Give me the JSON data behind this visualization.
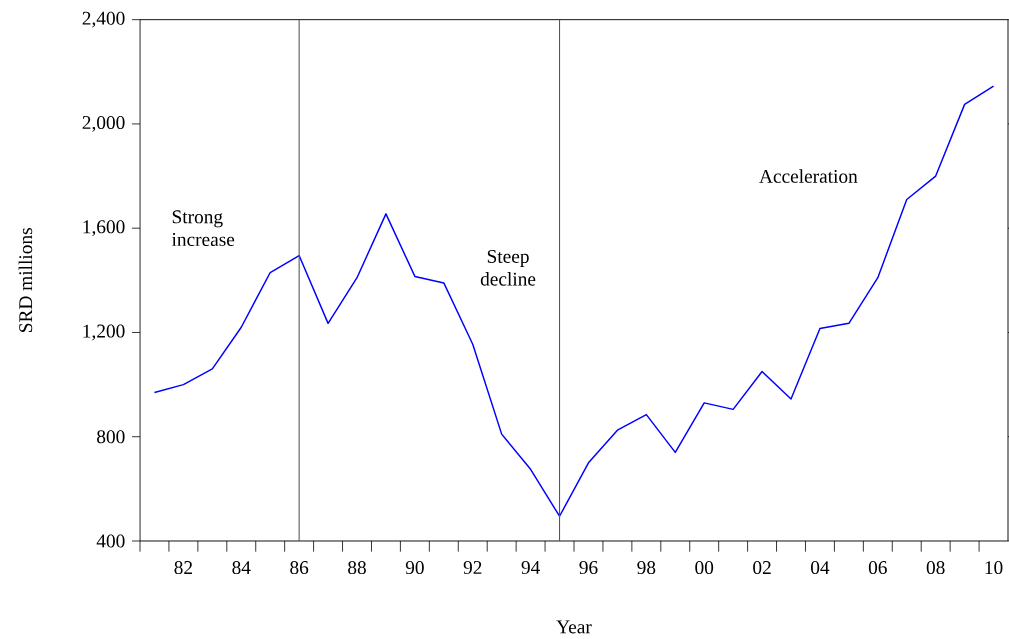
{
  "chart_data": {
    "type": "line",
    "xlabel": "Year",
    "ylabel": "SRD millions",
    "x": [
      1981,
      1982,
      1983,
      1984,
      1985,
      1986,
      1987,
      1988,
      1989,
      1990,
      1991,
      1992,
      1993,
      1994,
      1995,
      1996,
      1997,
      1998,
      1999,
      2000,
      2001,
      2002,
      2003,
      2004,
      2005,
      2006,
      2007,
      2008,
      2009,
      2010
    ],
    "series": [
      {
        "color": "#0000ff",
        "values": [
          970,
          1000,
          1060,
          1220,
          1430,
          1495,
          1235,
          1410,
          1655,
          1415,
          1390,
          1155,
          810,
          675,
          495,
          700,
          825,
          885,
          740,
          930,
          905,
          1050,
          945,
          1215,
          1235,
          1410,
          1710,
          1800,
          2075,
          2145
        ]
      }
    ],
    "xlim": [
      1980.5,
      2010.5
    ],
    "xticks": [
      {
        "value": 1980.5,
        "label": null
      },
      {
        "value": 1981.5,
        "label": null
      },
      {
        "value": 1982,
        "label": "82"
      },
      {
        "value": 1982.5,
        "label": null
      },
      {
        "value": 1983.5,
        "label": null
      },
      {
        "value": 1984,
        "label": "84"
      },
      {
        "value": 1984.5,
        "label": null
      },
      {
        "value": 1985.5,
        "label": null
      },
      {
        "value": 1986,
        "label": "86"
      },
      {
        "value": 1986.5,
        "label": null
      },
      {
        "value": 1987.5,
        "label": null
      },
      {
        "value": 1988,
        "label": "88"
      },
      {
        "value": 1988.5,
        "label": null
      },
      {
        "value": 1989.5,
        "label": null
      },
      {
        "value": 1990,
        "label": "90"
      },
      {
        "value": 1990.5,
        "label": null
      },
      {
        "value": 1991.5,
        "label": null
      },
      {
        "value": 1992,
        "label": "92"
      },
      {
        "value": 1992.5,
        "label": null
      },
      {
        "value": 1993.5,
        "label": null
      },
      {
        "value": 1994,
        "label": "94"
      },
      {
        "value": 1994.5,
        "label": null
      },
      {
        "value": 1995.5,
        "label": null
      },
      {
        "value": 1996,
        "label": "96"
      },
      {
        "value": 1996.5,
        "label": null
      },
      {
        "value": 1997.5,
        "label": null
      },
      {
        "value": 1998,
        "label": "98"
      },
      {
        "value": 1998.5,
        "label": null
      },
      {
        "value": 1999.5,
        "label": null
      },
      {
        "value": 2000,
        "label": "00"
      },
      {
        "value": 2000.5,
        "label": null
      },
      {
        "value": 2001.5,
        "label": null
      },
      {
        "value": 2002,
        "label": "02"
      },
      {
        "value": 2002.5,
        "label": null
      },
      {
        "value": 2003.5,
        "label": null
      },
      {
        "value": 2004,
        "label": "04"
      },
      {
        "value": 2004.5,
        "label": null
      },
      {
        "value": 2005.5,
        "label": null
      },
      {
        "value": 2006,
        "label": "06"
      },
      {
        "value": 2006.5,
        "label": null
      },
      {
        "value": 2007.5,
        "label": null
      },
      {
        "value": 2008,
        "label": "08"
      },
      {
        "value": 2008.5,
        "label": null
      },
      {
        "value": 2009.5,
        "label": null
      },
      {
        "value": 2010,
        "label": "10"
      }
    ],
    "ylim": [
      400,
      2400
    ],
    "yticks": [
      {
        "value": 400,
        "label": "400"
      },
      {
        "value": 800,
        "label": "800"
      },
      {
        "value": 1200,
        "label": "1,200"
      },
      {
        "value": 1600,
        "label": "1,600"
      },
      {
        "value": 2000,
        "label": "2,000"
      },
      {
        "value": 2400,
        "label": "2,400"
      }
    ],
    "ref_lines": [
      {
        "axis": "x",
        "value": 1986,
        "color": "#555555"
      },
      {
        "axis": "x",
        "value": 1995,
        "color": "#555555"
      }
    ],
    "annotations": [
      "Strong increase",
      "Steep decline",
      "Acceleration"
    ],
    "grid": false,
    "marker": "none",
    "line_style": "solid"
  }
}
